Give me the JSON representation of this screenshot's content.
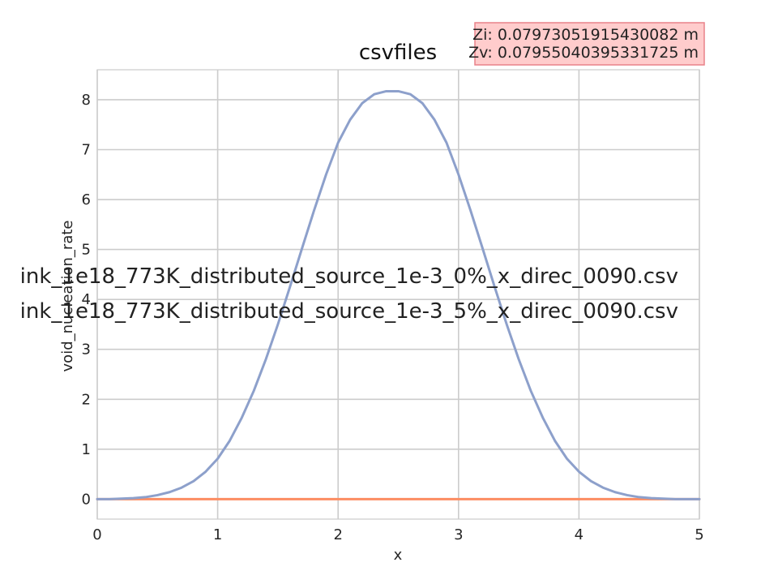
{
  "chart_data": {
    "type": "line",
    "title": "csvfiles",
    "xlabel": "x",
    "ylabel": "void_nucleation_rate",
    "xlim": [
      0,
      5
    ],
    "ylim": [
      -0.4,
      8.6
    ],
    "xticks": [
      "0",
      "1",
      "2",
      "3",
      "4",
      "5"
    ],
    "yticks": [
      "0",
      "1",
      "2",
      "3",
      "4",
      "5",
      "6",
      "7",
      "8"
    ],
    "grid": true,
    "legend_position": "center-left",
    "annotation": {
      "line1": "Zi: 0.07973051915430082 m",
      "line2": "Zv: 0.07955040395331725 m",
      "position": "top-right"
    },
    "series": [
      {
        "name": "ink_1e18_773K_distributed_source_1e-3_0%_x_direc_0090.csv",
        "color": "#8da0cb",
        "x": [
          0,
          0.1,
          0.2,
          0.3,
          0.4,
          0.5,
          0.6,
          0.7,
          0.8,
          0.9,
          1.0,
          1.1,
          1.2,
          1.3,
          1.4,
          1.5,
          1.6,
          1.7,
          1.8,
          1.9,
          2.0,
          2.1,
          2.2,
          2.3,
          2.4,
          2.5,
          2.6,
          2.7,
          2.8,
          2.9,
          3.0,
          3.1,
          3.2,
          3.3,
          3.4,
          3.5,
          3.6,
          3.7,
          3.8,
          3.9,
          4.0,
          4.1,
          4.2,
          4.3,
          4.4,
          4.5,
          4.6,
          4.7,
          4.8,
          4.9,
          5.0
        ],
        "y": [
          0.0,
          0.0,
          0.01,
          0.02,
          0.04,
          0.08,
          0.14,
          0.23,
          0.36,
          0.55,
          0.81,
          1.17,
          1.63,
          2.17,
          2.8,
          3.5,
          4.25,
          5.02,
          5.78,
          6.5,
          7.14,
          7.6,
          7.93,
          8.11,
          8.17,
          8.17,
          8.11,
          7.93,
          7.6,
          7.14,
          6.5,
          5.78,
          5.02,
          4.25,
          3.5,
          2.8,
          2.17,
          1.63,
          1.17,
          0.81,
          0.55,
          0.36,
          0.23,
          0.14,
          0.08,
          0.04,
          0.02,
          0.01,
          0.0,
          0.0,
          0.0
        ]
      },
      {
        "name": "ink_1e18_773K_distributed_source_1e-3_5%_x_direc_0090.csv",
        "color": "#fc8d62",
        "x": [
          0,
          5
        ],
        "y": [
          0,
          0
        ]
      }
    ]
  }
}
